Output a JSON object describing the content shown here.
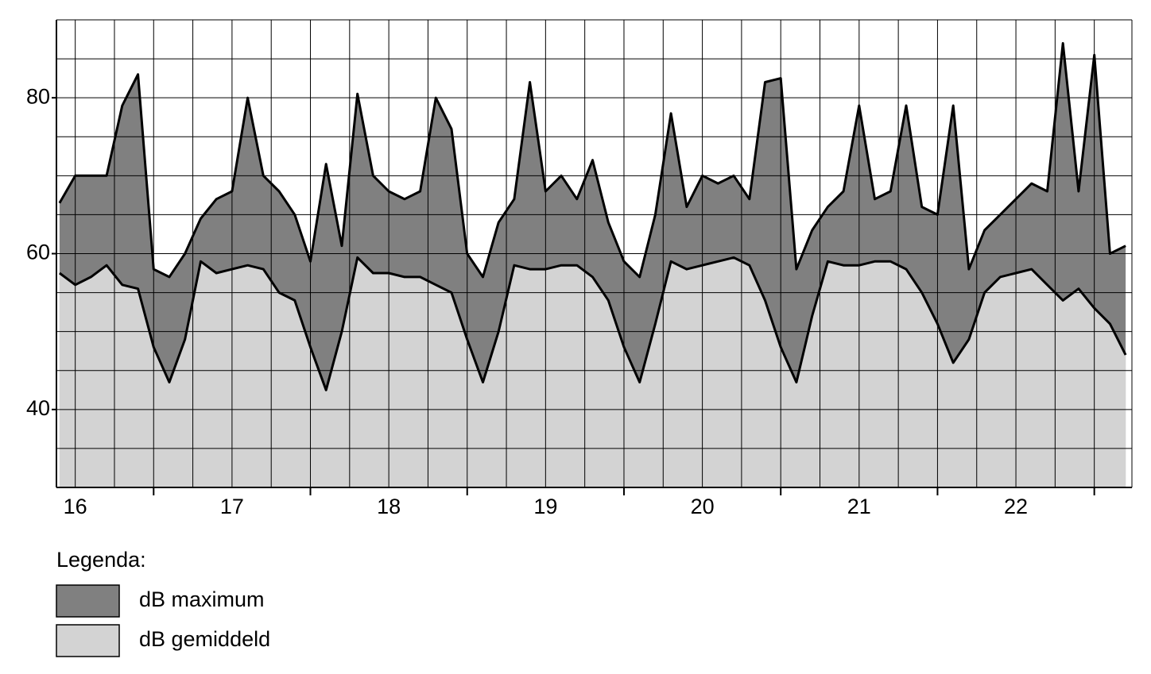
{
  "chart_data": {
    "type": "area",
    "legend_title": "Legenda:",
    "x": [
      16.4,
      16.5,
      16.6,
      16.7,
      16.8,
      16.9,
      17.0,
      17.1,
      17.2,
      17.3,
      17.4,
      17.5,
      17.6,
      17.7,
      17.8,
      17.9,
      18.0,
      18.1,
      18.2,
      18.3,
      18.4,
      18.5,
      18.6,
      18.7,
      18.8,
      18.9,
      19.0,
      19.1,
      19.2,
      19.3,
      19.4,
      19.5,
      19.6,
      19.7,
      19.8,
      19.9,
      20.0,
      20.1,
      20.2,
      20.3,
      20.4,
      20.5,
      20.6,
      20.7,
      20.8,
      20.9,
      21.0,
      21.1,
      21.2,
      21.3,
      21.4,
      21.5,
      21.6,
      21.7,
      21.8,
      21.9,
      22.0,
      22.1,
      22.2,
      22.3,
      22.4,
      22.5,
      22.6,
      22.7,
      22.8,
      22.9,
      23.0,
      23.1,
      23.2
    ],
    "series": [
      {
        "name": "dB maximum",
        "color": "#808080",
        "values": [
          66.5,
          70,
          70,
          70,
          79,
          83,
          58,
          57,
          60,
          64.5,
          67,
          68,
          80,
          70,
          68,
          65,
          59,
          71.5,
          61,
          80.5,
          70,
          68,
          67,
          68,
          80,
          76,
          60,
          57,
          64,
          67,
          82,
          68,
          70,
          67,
          72,
          64,
          59,
          57,
          65,
          78,
          66,
          70,
          69,
          70,
          67,
          82,
          82.5,
          58,
          63,
          66,
          68,
          79,
          67,
          68,
          79,
          66,
          65,
          79,
          58,
          63,
          65,
          67,
          69,
          68,
          87,
          68,
          85.5,
          60,
          61
        ]
      },
      {
        "name": "dB gemiddeld",
        "color": "#d3d3d3",
        "values": [
          57.5,
          56,
          57,
          58.5,
          56,
          55.5,
          48,
          43.5,
          49,
          59,
          57.5,
          58,
          58.5,
          58,
          55,
          54,
          48,
          42.5,
          50,
          59.5,
          57.5,
          57.5,
          57,
          57,
          56,
          55,
          49,
          43.5,
          50,
          58.5,
          58,
          58,
          58.5,
          58.5,
          57,
          54,
          48,
          43.5,
          51,
          59,
          58,
          58.5,
          59,
          59.5,
          58.5,
          54,
          48,
          43.5,
          52,
          59,
          58.5,
          58.5,
          59,
          59,
          58,
          55,
          51,
          46,
          49,
          55,
          57,
          57.5,
          58,
          56,
          54,
          55.5,
          53,
          51,
          47
        ]
      }
    ],
    "xlim": [
      16.38,
      23.24
    ],
    "ylim": [
      30,
      90
    ],
    "yticks": [
      40,
      60,
      80
    ],
    "xticks": [
      {
        "value": 16.5,
        "label": "16"
      },
      {
        "value": 17.5,
        "label": "17"
      },
      {
        "value": 18.5,
        "label": "18"
      },
      {
        "value": 19.5,
        "label": "19"
      },
      {
        "value": 20.5,
        "label": "20"
      },
      {
        "value": 21.5,
        "label": "21"
      },
      {
        "value": 22.5,
        "label": "22"
      }
    ],
    "x_major_ticks": [
      17,
      18,
      19,
      20,
      21,
      22,
      23
    ],
    "x_grid": [
      16.5,
      16.75,
      17,
      17.25,
      17.5,
      17.75,
      18,
      18.25,
      18.5,
      18.75,
      19,
      19.25,
      19.5,
      19.75,
      20,
      20.25,
      20.5,
      20.75,
      21,
      21.25,
      21.5,
      21.75,
      22,
      22.25,
      22.5,
      22.75,
      23
    ],
    "y_grid": [
      35,
      40,
      45,
      50,
      55,
      60,
      65,
      70,
      75,
      80,
      85
    ],
    "grid": true,
    "line_color": "#000000"
  }
}
